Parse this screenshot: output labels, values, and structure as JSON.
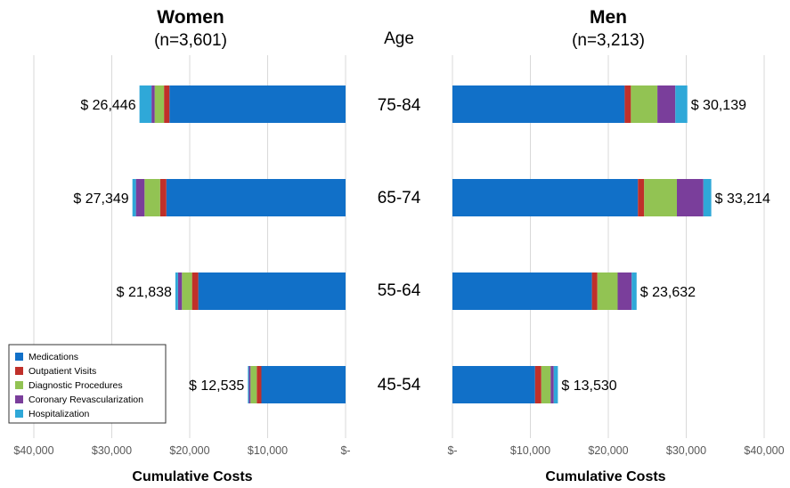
{
  "chart_data": {
    "type": "bar",
    "orientation": "horizontal",
    "stacked": true,
    "age_header": "Age",
    "categories": [
      "75-84",
      "65-74",
      "55-64",
      "45-54"
    ],
    "segments": [
      {
        "name": "Medications",
        "color": "#1170C8"
      },
      {
        "name": "Outpatient Visits",
        "color": "#C0302A"
      },
      {
        "name": "Diagnostic Procedures",
        "color": "#92C353"
      },
      {
        "name": "Coronary Revascularization",
        "color": "#7A3E9B"
      },
      {
        "name": "Hospitalization",
        "color": "#2FA8D8"
      }
    ],
    "panels": [
      {
        "title": "Women",
        "subtitle": "(n=3,601)",
        "xlabel": "Cumulative Costs",
        "reversed": true,
        "xlim": [
          0,
          40000
        ],
        "ticks": [
          {
            "value": 40000,
            "label": "$40,000"
          },
          {
            "value": 30000,
            "label": "$30,000"
          },
          {
            "value": 20000,
            "label": "$20,000"
          },
          {
            "value": 10000,
            "label": "$10,000"
          },
          {
            "value": 0,
            "label": "$-"
          }
        ],
        "totals": [
          "$ 26,446",
          "$ 27,349",
          "$ 21,838",
          "$ 12,535"
        ],
        "series": [
          {
            "name": "Medications",
            "values": [
              22600,
              23000,
              18900,
              10800
            ]
          },
          {
            "name": "Outpatient Visits",
            "values": [
              700,
              800,
              800,
              600
            ]
          },
          {
            "name": "Diagnostic Procedures",
            "values": [
              1200,
              2000,
              1300,
              800
            ]
          },
          {
            "name": "Coronary Revascularization",
            "values": [
              400,
              1100,
              500,
              200
            ]
          },
          {
            "name": "Hospitalization",
            "values": [
              1546,
              449,
              338,
              135
            ]
          }
        ]
      },
      {
        "title": "Men",
        "subtitle": "(n=3,213)",
        "xlabel": "Cumulative Costs",
        "reversed": false,
        "xlim": [
          0,
          40000
        ],
        "ticks": [
          {
            "value": 0,
            "label": "$-"
          },
          {
            "value": 10000,
            "label": "$10,000"
          },
          {
            "value": 20000,
            "label": "$20,000"
          },
          {
            "value": 30000,
            "label": "$30,000"
          },
          {
            "value": 40000,
            "label": "$40,000"
          }
        ],
        "totals": [
          "$ 30,139",
          "$ 33,214",
          "$ 23,632",
          "$ 13,530"
        ],
        "series": [
          {
            "name": "Medications",
            "values": [
              22100,
              23800,
              17900,
              10600
            ]
          },
          {
            "name": "Outpatient Visits",
            "values": [
              800,
              800,
              700,
              800
            ]
          },
          {
            "name": "Diagnostic Procedures",
            "values": [
              3400,
              4200,
              2600,
              1200
            ]
          },
          {
            "name": "Coronary Revascularization",
            "values": [
              2300,
              3400,
              1800,
              400
            ]
          },
          {
            "name": "Hospitalization",
            "values": [
              1539,
              1014,
              632,
              530
            ]
          }
        ]
      }
    ],
    "legend_position": "bottom-left",
    "grid": true
  }
}
